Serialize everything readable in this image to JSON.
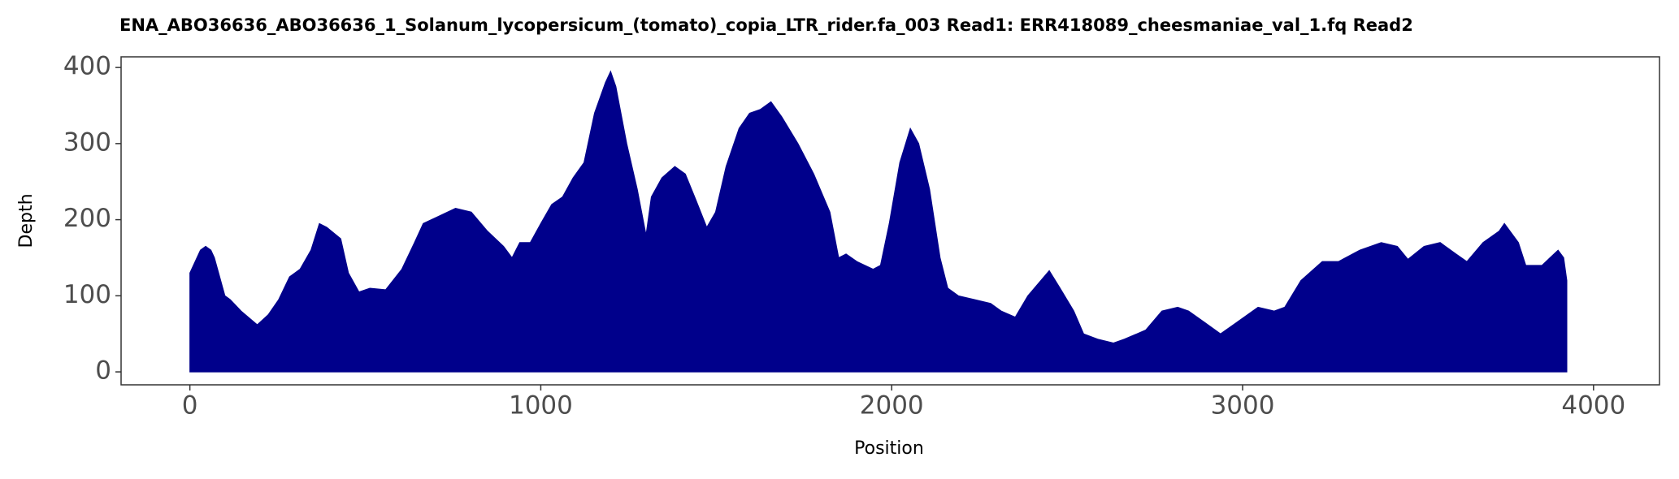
{
  "chart_data": {
    "type": "area",
    "title": "ENA_ABO36636_ABO36636_1_Solanum_lycopersicum_(tomato)_copia_LTR_rider.fa_003   Read1: ERR418089_cheesmaniae_val_1.fq   Read2",
    "xlabel": "Position",
    "ylabel": "Depth",
    "color": "#00008b",
    "x": [
      0,
      30,
      45,
      60,
      70,
      100,
      115,
      146,
      192,
      223,
      253,
      284,
      314,
      345,
      369,
      390,
      430,
      452,
      482,
      513,
      558,
      604,
      635,
      665,
      711,
      757,
      802,
      848,
      894,
      918,
      940,
      970,
      1000,
      1031,
      1062,
      1092,
      1123,
      1153,
      1184,
      1199,
      1214,
      1245,
      1275,
      1300,
      1315,
      1345,
      1382,
      1412,
      1443,
      1473,
      1498,
      1528,
      1565,
      1595,
      1626,
      1656,
      1687,
      1733,
      1778,
      1824,
      1849,
      1870,
      1901,
      1947,
      1968,
      1993,
      2023,
      2053,
      2077,
      2108,
      2138,
      2160,
      2190,
      2236,
      2282,
      2312,
      2352,
      2388,
      2434,
      2449,
      2480,
      2519,
      2547,
      2587,
      2632,
      2663,
      2724,
      2770,
      2815,
      2846,
      2892,
      2937,
      2983,
      3044,
      3090,
      3120,
      3166,
      3227,
      3273,
      3334,
      3395,
      3441,
      3471,
      3517,
      3563,
      3608,
      3639,
      3685,
      3731,
      3746,
      3786,
      3807,
      3853,
      3899,
      3915,
      3924
    ],
    "values": [
      130,
      160,
      165,
      160,
      150,
      100,
      95,
      80,
      62,
      75,
      95,
      125,
      135,
      160,
      195,
      190,
      175,
      130,
      105,
      110,
      108,
      135,
      165,
      195,
      205,
      215,
      210,
      185,
      165,
      150,
      170,
      170,
      195,
      220,
      230,
      255,
      275,
      340,
      380,
      395,
      375,
      300,
      240,
      180,
      230,
      255,
      270,
      260,
      225,
      190,
      210,
      270,
      320,
      340,
      345,
      355,
      335,
      300,
      260,
      210,
      150,
      155,
      145,
      135,
      140,
      195,
      275,
      320,
      300,
      240,
      150,
      110,
      100,
      95,
      90,
      80,
      72,
      100,
      125,
      133,
      110,
      80,
      50,
      43,
      38,
      43,
      55,
      80,
      85,
      80,
      65,
      50,
      65,
      85,
      80,
      85,
      120,
      145,
      145,
      160,
      170,
      165,
      148,
      165,
      170,
      155,
      145,
      170,
      185,
      195,
      170,
      140,
      140,
      160,
      150,
      120
    ],
    "xlim": [
      -196,
      4188
    ],
    "ylim": [
      -17,
      414
    ],
    "xticks": [
      0,
      1000,
      2000,
      3000,
      4000
    ],
    "yticks": [
      0,
      100,
      200,
      300,
      400
    ]
  }
}
